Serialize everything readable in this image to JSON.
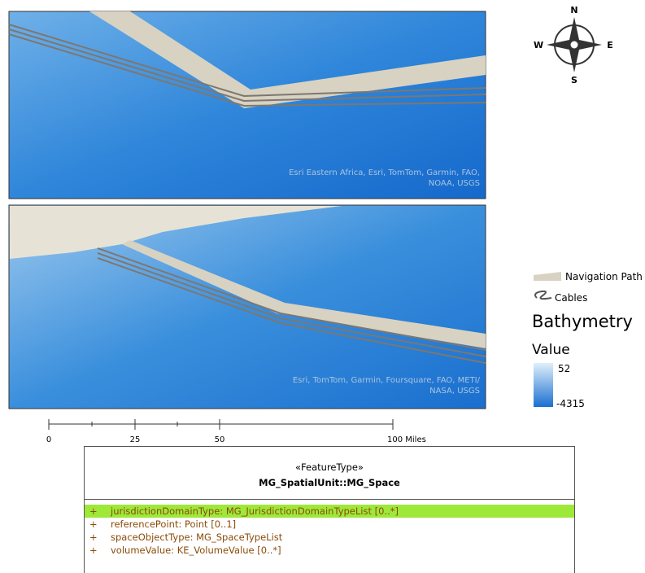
{
  "map_top": {
    "attribution_1": "Esri Eastern Africa, Esri, TomTom, Garmin, FAO,",
    "attribution_2": "NOAA, USGS"
  },
  "map_bottom": {
    "attribution_1": "Esri, TomTom, Garmin, Foursquare, FAO, METI/",
    "attribution_2": "NASA, USGS"
  },
  "compass": {
    "n": "N",
    "e": "E",
    "s": "S",
    "w": "W"
  },
  "legend": {
    "items": [
      "Navigation Path",
      "Cables"
    ],
    "title": "Bathymetry",
    "subtitle": "Value",
    "max": 52,
    "min": -4315
  },
  "scale_bar": {
    "labels": [
      "0",
      "25",
      "50",
      "100 Miles"
    ]
  },
  "uml": {
    "stereotype": "«FeatureType»",
    "name": "MG_SpatialUnit::MG_Space",
    "attributes": [
      {
        "visibility": "+",
        "text": "jurisdictionDomainType: MG_JurisdictionDomainTypeList [0..*]"
      },
      {
        "visibility": "+",
        "text": "referencePoint: Point [0..1]"
      },
      {
        "visibility": "+",
        "text": "spaceObjectType: MG_SpaceTypeList"
      },
      {
        "visibility": "+",
        "text": "volumeValue: KE_VolumeValue [0..*]"
      }
    ]
  }
}
